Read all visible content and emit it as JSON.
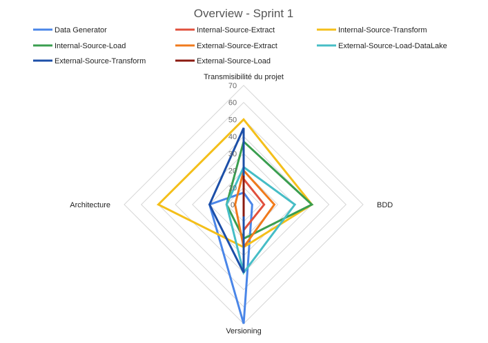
{
  "chart_data": {
    "type": "radar",
    "title": "Overview - Sprint 1",
    "axes": [
      "Transmisibilité du projet",
      "BDD",
      "Versioning",
      "Architecture"
    ],
    "range": [
      0,
      70
    ],
    "ticks": [
      0,
      10,
      20,
      30,
      40,
      50,
      60,
      70
    ],
    "grid": true,
    "legend_position": "top",
    "series": [
      {
        "name": "Data Generator",
        "color": "#4a86e8",
        "values": [
          7,
          5,
          70,
          20
        ]
      },
      {
        "name": "Internal-Source-Extract",
        "color": "#e0503c",
        "values": [
          15,
          12,
          15,
          0
        ]
      },
      {
        "name": "Internal-Source-Transform",
        "color": "#f4bf1a",
        "values": [
          50,
          40,
          25,
          50
        ]
      },
      {
        "name": "Internal-Source-Load",
        "color": "#3a9e4f",
        "values": [
          37,
          40,
          20,
          10
        ]
      },
      {
        "name": "External-Source-Extract",
        "color": "#f07a1c",
        "values": [
          20,
          18,
          25,
          5
        ]
      },
      {
        "name": "External-Source-Load-DataLake",
        "color": "#46bdc6",
        "values": [
          22,
          30,
          40,
          10
        ]
      },
      {
        "name": "External-Source-Transform",
        "color": "#1c4fa8",
        "values": [
          45,
          0,
          40,
          20
        ]
      },
      {
        "name": "External-Source-Load",
        "color": "#8b1a10",
        "values": [
          17,
          0,
          7,
          0
        ]
      }
    ]
  }
}
